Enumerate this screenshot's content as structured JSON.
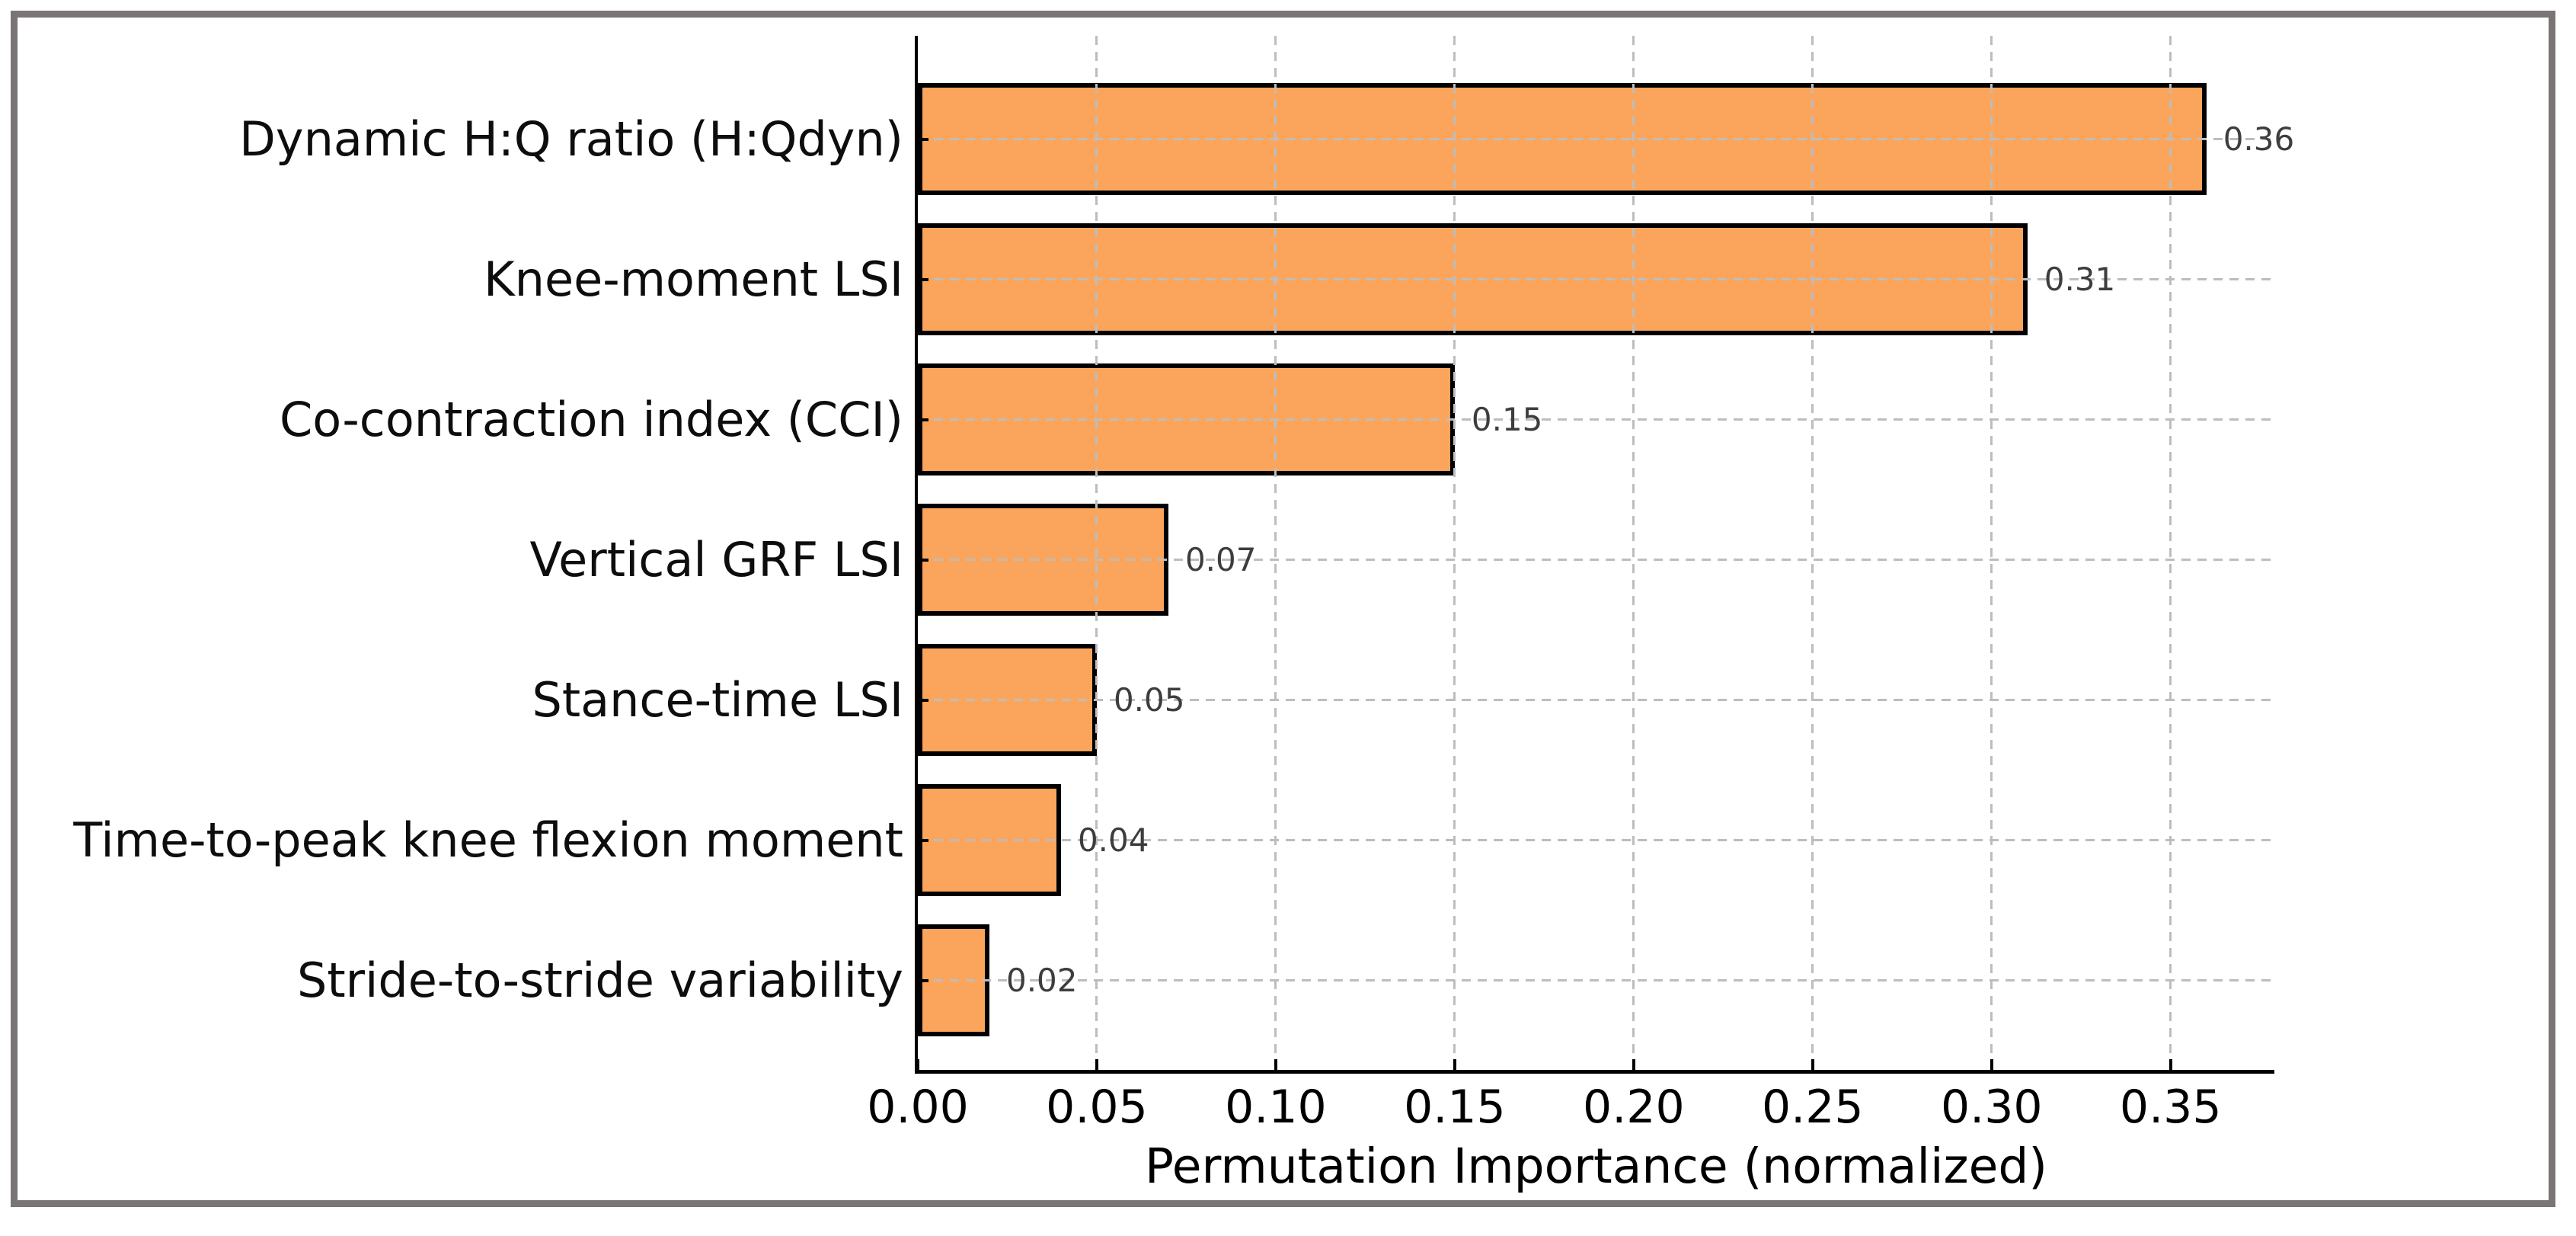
{
  "figure": {
    "background_color": "#ffffff",
    "border_color": "#7a7474",
    "title": ""
  },
  "chart_data": {
    "type": "bar",
    "orientation": "horizontal",
    "title": "",
    "xlabel": "Permutation Importance (normalized)",
    "ylabel": "",
    "categories": [
      "Dynamic H:Q ratio (H:Qdyn)",
      "Knee-moment LSI",
      "Co-contraction index (CCI)",
      "Vertical GRF LSI",
      "Stance-time LSI",
      "Time-to-peak knee flexion moment",
      "Stride-to-stride variability"
    ],
    "values": [
      0.36,
      0.31,
      0.15,
      0.07,
      0.05,
      0.04,
      0.02
    ],
    "value_labels": [
      "0.36",
      "0.31",
      "0.15",
      "0.07",
      "0.05",
      "0.04",
      "0.02"
    ],
    "x_ticks": {
      "values": [
        0.0,
        0.05,
        0.1,
        0.15,
        0.2,
        0.25,
        0.3,
        0.35
      ],
      "labels": [
        "0.00",
        "0.05",
        "0.10",
        "0.15",
        "0.20",
        "0.25",
        "0.30",
        "0.35"
      ]
    },
    "xlim": [
      0,
      0.379
    ],
    "grid": {
      "visible": true,
      "style": "dashed",
      "color": "#bdbdbd",
      "axes": "both",
      "drawn_above_bars": true
    },
    "legend": "none",
    "bar_color": "#FBA55C",
    "bar_edge_color": "#000000",
    "value_label_color": "#3d3d3d",
    "tick_direction": "in"
  }
}
